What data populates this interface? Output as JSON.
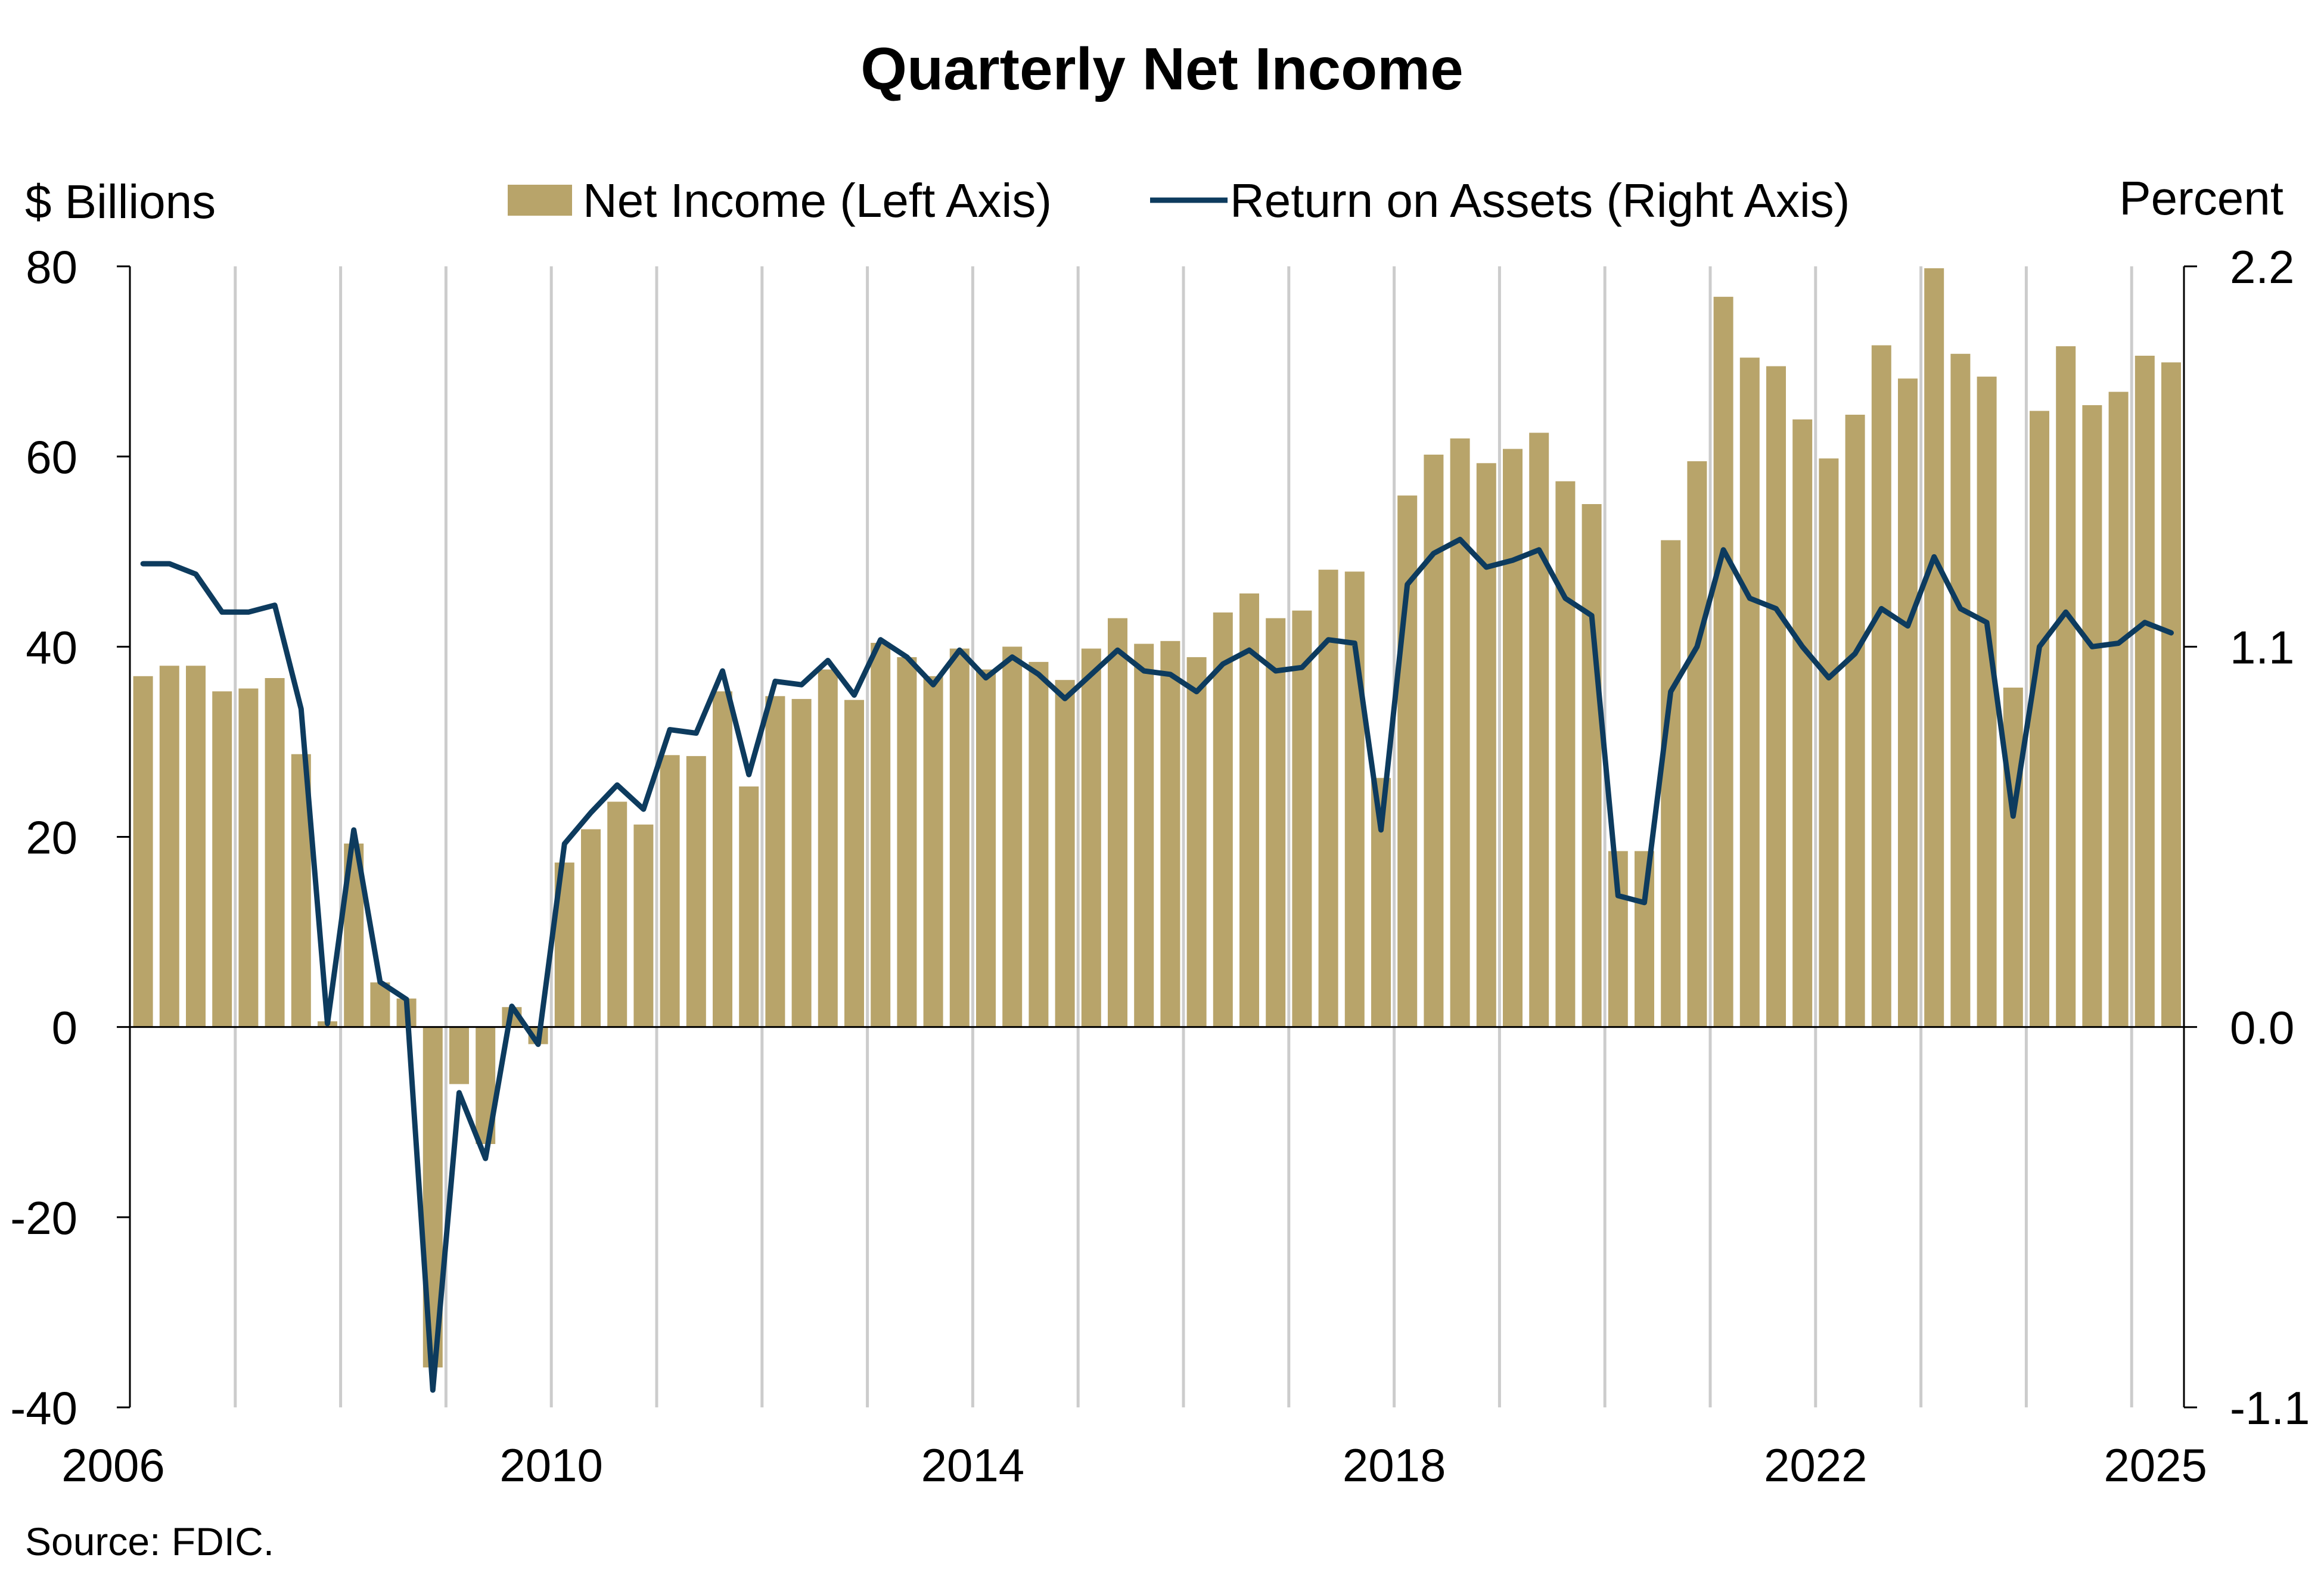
{
  "chart_data": {
    "type": "bar",
    "title": "Quarterly Net Income",
    "source": "Source: FDIC.",
    "left_axis": {
      "label": "$ Billions",
      "ylim": [
        -40,
        80
      ],
      "ticks": [
        "80",
        "60",
        "40",
        "20",
        "0",
        "-20",
        "-40"
      ],
      "tick_values": [
        80,
        60,
        40,
        20,
        0,
        -20,
        -40
      ]
    },
    "right_axis": {
      "label": "Percent",
      "ylim": [
        -1.1,
        2.2
      ],
      "ticks": [
        "2.2",
        "1.1",
        "0.0",
        "-1.1"
      ],
      "tick_values": [
        2.2,
        1.1,
        0.0,
        -1.1
      ]
    },
    "x_axis": {
      "tick_labels": [
        "2006",
        "2010",
        "2014",
        "2018",
        "2022",
        "2025"
      ],
      "tick_years": [
        2006,
        2010,
        2014,
        2018,
        2022,
        2025
      ],
      "start_year": 2006,
      "quarters": 78
    },
    "legend": {
      "bar_label": "Net Income (Left Axis)",
      "line_label": "Return on Assets (Right Axis)",
      "position": "top-center"
    },
    "grid": "vertical",
    "colors": {
      "bar": "#b8a46a",
      "line": "#0d3b5e",
      "axis": "#000000",
      "grid": "#cccccc"
    },
    "series": [
      {
        "name": "Net Income (Left Axis)",
        "axis": "left",
        "kind": "bar",
        "values": [
          36.9,
          38.0,
          38.0,
          35.3,
          35.6,
          36.7,
          28.7,
          0.6,
          19.3,
          4.7,
          3.0,
          -35.8,
          -6.0,
          -12.3,
          2.1,
          -1.8,
          17.3,
          20.8,
          23.7,
          21.3,
          28.6,
          28.5,
          35.3,
          25.3,
          34.8,
          34.5,
          37.6,
          34.4,
          40.4,
          38.9,
          36.9,
          39.8,
          37.6,
          40.0,
          38.4,
          36.5,
          39.8,
          43.0,
          40.3,
          40.6,
          38.9,
          43.6,
          45.6,
          43.0,
          43.8,
          48.1,
          47.9,
          26.2,
          55.9,
          60.2,
          61.9,
          59.3,
          60.8,
          62.5,
          57.4,
          55.0,
          18.5,
          18.5,
          51.2,
          59.5,
          76.8,
          70.4,
          69.5,
          63.9,
          59.8,
          64.4,
          71.7,
          68.2,
          79.8,
          70.8,
          68.4,
          35.7,
          64.8,
          71.6,
          65.4,
          66.8,
          70.6,
          69.9
        ]
      },
      {
        "name": "Return on Assets (Right Axis)",
        "axis": "right",
        "kind": "line",
        "values": [
          1.34,
          1.34,
          1.31,
          1.2,
          1.2,
          1.22,
          0.92,
          0.01,
          0.57,
          0.13,
          0.08,
          -1.05,
          -0.19,
          -0.38,
          0.06,
          -0.05,
          0.53,
          0.62,
          0.7,
          0.63,
          0.86,
          0.85,
          1.03,
          0.73,
          1.0,
          0.99,
          1.06,
          0.96,
          1.12,
          1.07,
          0.99,
          1.09,
          1.01,
          1.07,
          1.02,
          0.95,
          1.02,
          1.09,
          1.03,
          1.02,
          0.97,
          1.05,
          1.09,
          1.03,
          1.04,
          1.12,
          1.11,
          0.57,
          1.28,
          1.37,
          1.41,
          1.33,
          1.35,
          1.38,
          1.24,
          1.19,
          0.38,
          0.36,
          0.97,
          1.1,
          1.38,
          1.24,
          1.21,
          1.1,
          1.01,
          1.08,
          1.21,
          1.16,
          1.36,
          1.21,
          1.17,
          0.61,
          1.1,
          1.2,
          1.1,
          1.11,
          1.17,
          1.14
        ]
      }
    ]
  }
}
